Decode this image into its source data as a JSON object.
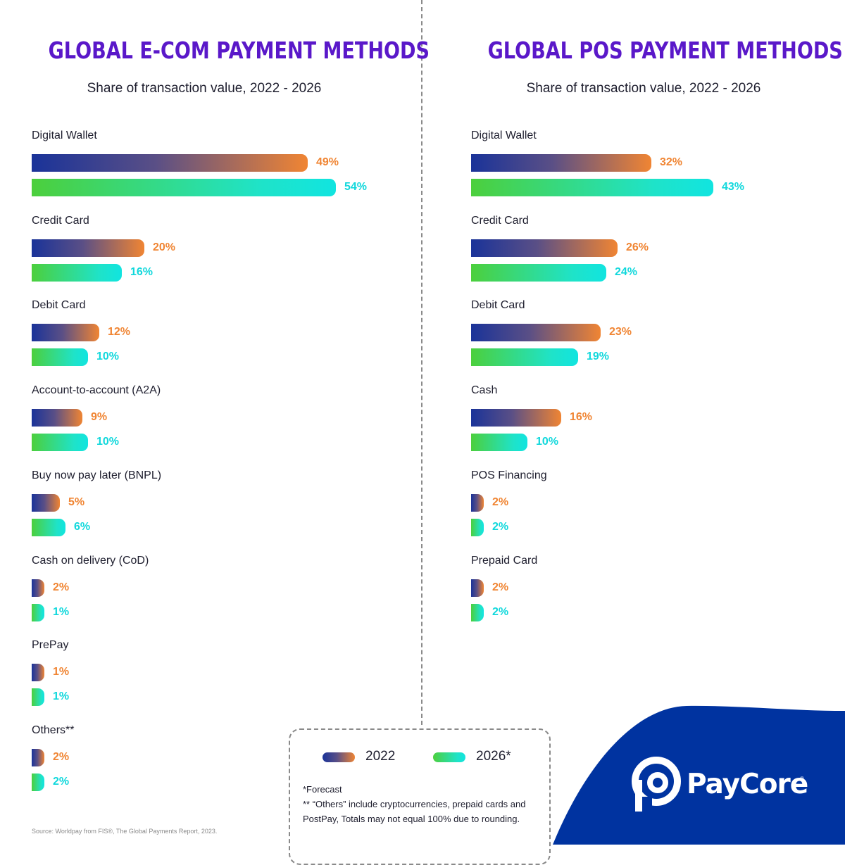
{
  "brand": {
    "name": "PayCore",
    "registered_mark": "®",
    "color_navy": "#0033a0"
  },
  "colors": {
    "title": "#5a18c9",
    "series_2022_start": "#1a3399",
    "series_2022_end": "#f08533",
    "series_2026_start": "#4ccf3c",
    "series_2026_end": "#11e4e0"
  },
  "legend": {
    "series_2022": "2022",
    "series_2026": "2026*"
  },
  "notes": {
    "forecast": "*Forecast",
    "others": "** “Others” include cryptocurrencies, prepaid cards and PostPay, Totals may not equal 100% due to rounding."
  },
  "source": "Source: Worldpay from FIS®, The Global Payments Report, 2023.",
  "chart_data": [
    {
      "type": "bar",
      "orientation": "horizontal",
      "title": "GLOBAL E-COM PAYMENT METHODS",
      "subtitle": "Share of transaction value, 2022 - 2026",
      "categories": [
        "Digital Wallet",
        "Credit Card",
        "Debit Card",
        "Account-to-account (A2A)",
        "Buy now pay later (BNPL)",
        "Cash on delivery (CoD)",
        "PrePay",
        "Others**"
      ],
      "series": [
        {
          "name": "2022",
          "values": [
            49,
            20,
            12,
            9,
            5,
            2,
            1,
            2
          ],
          "labels": [
            "49%",
            "20%",
            "12%",
            "9%",
            "5%",
            "2%",
            "1%",
            "2%"
          ]
        },
        {
          "name": "2026*",
          "values": [
            54,
            16,
            10,
            10,
            6,
            1,
            1,
            2
          ],
          "labels": [
            "54%",
            "16%",
            "10%",
            "10%",
            "6%",
            "1%",
            "1%",
            "2%"
          ]
        }
      ],
      "unit": "%",
      "legend_position": "bottom-center",
      "grid": false
    },
    {
      "type": "bar",
      "orientation": "horizontal",
      "title": "GLOBAL POS PAYMENT METHODS",
      "subtitle": "Share of transaction value, 2022 - 2026",
      "categories": [
        "Digital Wallet",
        "Credit Card",
        "Debit Card",
        "Cash",
        "POS Financing",
        "Prepaid Card"
      ],
      "series": [
        {
          "name": "2022",
          "values": [
            32,
            26,
            23,
            16,
            2,
            2
          ],
          "labels": [
            "32%",
            "26%",
            "23%",
            "16%",
            "2%",
            "2%"
          ]
        },
        {
          "name": "2026*",
          "values": [
            43,
            24,
            19,
            10,
            2,
            2
          ],
          "labels": [
            "43%",
            "24%",
            "19%",
            "10%",
            "2%",
            "2%"
          ]
        }
      ],
      "unit": "%",
      "legend_position": "bottom-center",
      "grid": false
    }
  ]
}
